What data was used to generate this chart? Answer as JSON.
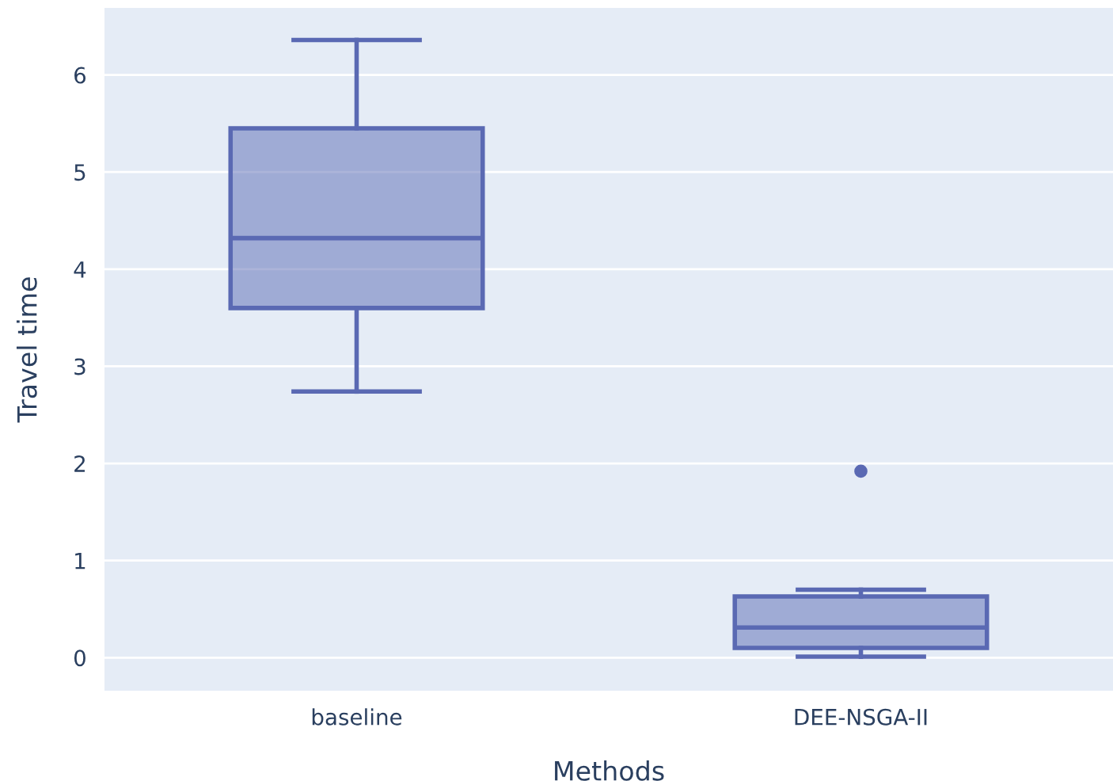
{
  "chart_data": {
    "type": "box",
    "xlabel": "Methods",
    "ylabel": "Travel time",
    "categories": [
      "baseline",
      "DEE-NSGA-II"
    ],
    "boxes": [
      {
        "low": 2.74,
        "q1": 3.6,
        "median": 4.32,
        "q3": 5.45,
        "high": 6.36
      },
      {
        "low": 0.01,
        "q1": 0.1,
        "median": 0.31,
        "q3": 0.63,
        "high": 0.7,
        "outliers": [
          1.92
        ]
      }
    ],
    "color": "#5a69b3",
    "ylim": [
      -0.34,
      6.69
    ],
    "yticks": [
      0,
      1,
      2,
      3,
      4,
      5,
      6
    ],
    "grid": "y"
  }
}
